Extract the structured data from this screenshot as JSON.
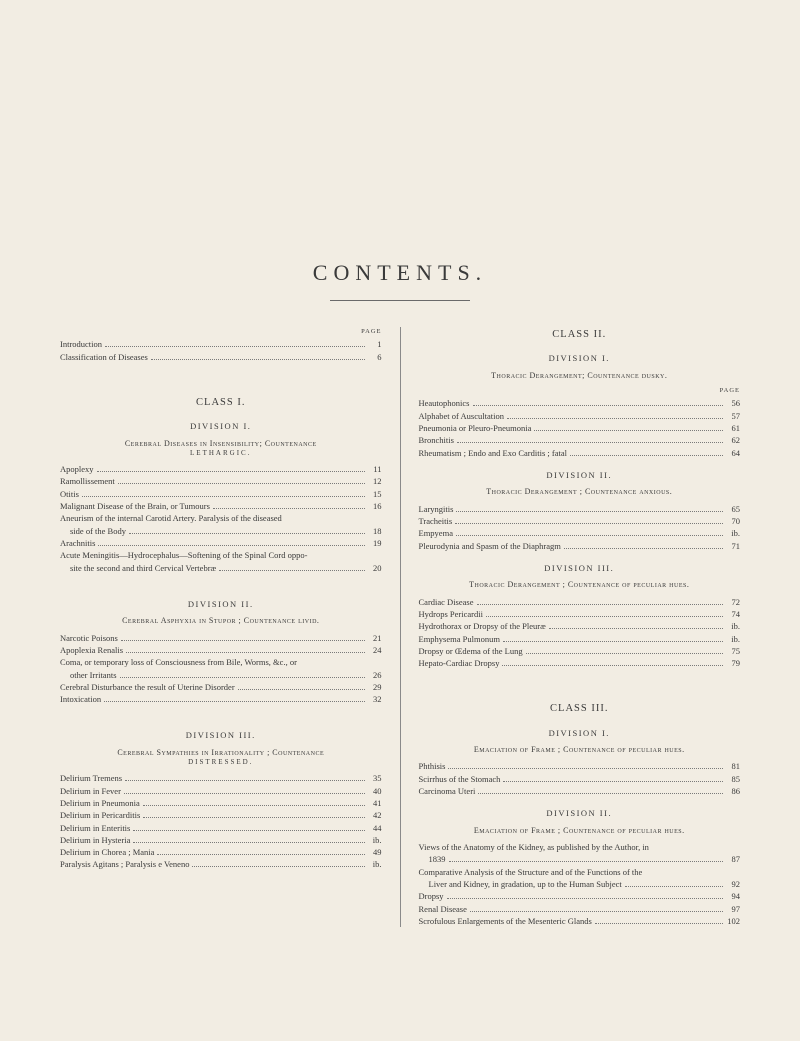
{
  "title": "CONTENTS.",
  "page_label": "PAGE",
  "colors": {
    "background": "#f2ede3",
    "text": "#3a3a3a",
    "rule": "#6a6a6a"
  },
  "left": {
    "top_entries": [
      {
        "label": "Introduction",
        "page": "1"
      },
      {
        "label": "Classification of Diseases",
        "page": "6"
      }
    ],
    "class1": {
      "heading": "CLASS I.",
      "div1": {
        "heading": "DIVISION I.",
        "section": "Cerebral Diseases in Insensibility; Countenance",
        "section_sub": "LETHARGIC.",
        "entries": [
          {
            "label": "Apoplexy",
            "page": "11"
          },
          {
            "label": "Ramollissement",
            "page": "12"
          },
          {
            "label": "Otitis",
            "page": "15"
          },
          {
            "label": "Malignant Disease of the Brain, or Tumours",
            "page": "16"
          },
          {
            "label": "Aneurism of the internal Carotid Artery. Paralysis of the diseased",
            "page": ""
          },
          {
            "label": "side of the Body",
            "page": "18",
            "indent": true
          },
          {
            "label": "Arachnitis",
            "page": "19"
          },
          {
            "label": "Acute Meningitis—Hydrocephalus—Softening of the Spinal Cord oppo-",
            "page": ""
          },
          {
            "label": "site the second and third Cervical Vertebræ",
            "page": "20",
            "indent": true
          }
        ]
      },
      "div2": {
        "heading": "DIVISION II.",
        "section": "Cerebral Asphyxia in Stupor ; Countenance livid.",
        "entries": [
          {
            "label": "Narcotic Poisons",
            "page": "21"
          },
          {
            "label": "Apoplexia Renalis",
            "page": "24"
          },
          {
            "label": "Coma, or temporary loss of Consciousness from Bile, Worms, &c., or",
            "page": ""
          },
          {
            "label": "other Irritants",
            "page": "26",
            "indent": true
          },
          {
            "label": "Cerebral Disturbance the result of Uterine Disorder",
            "page": "29"
          },
          {
            "label": "Intoxication",
            "page": "32"
          }
        ]
      },
      "div3": {
        "heading": "DIVISION III.",
        "section": "Cerebral Sympathies in Irrationality ; Countenance",
        "section_sub": "DISTRESSED.",
        "entries": [
          {
            "label": "Delirium Tremens",
            "page": "35"
          },
          {
            "label": "Delirium in Fever",
            "page": "40"
          },
          {
            "label": "Delirium in Pneumonia",
            "page": "41"
          },
          {
            "label": "Delirium in Pericarditis",
            "page": "42"
          },
          {
            "label": "Delirium in Enteritis",
            "page": "44"
          },
          {
            "label": "Delirium in Hysteria",
            "page": "ib."
          },
          {
            "label": "Delirium in Chorea ; Mania",
            "page": "49"
          },
          {
            "label": "Paralysis Agitans ; Paralysis e Veneno",
            "page": "ib."
          }
        ]
      }
    }
  },
  "right": {
    "class2": {
      "heading": "CLASS II.",
      "div1": {
        "heading": "DIVISION I.",
        "section": "Thoracic Derangement; Countenance dusky.",
        "entries": [
          {
            "label": "Heautophonics",
            "page": "56"
          },
          {
            "label": "Alphabet of Auscultation",
            "page": "57"
          },
          {
            "label": "Pneumonia or Pleuro-Pneumonia",
            "page": "61"
          },
          {
            "label": "Bronchitis",
            "page": "62"
          },
          {
            "label": "Rheumatism ; Endo and Exo Carditis ; fatal",
            "page": "64"
          }
        ]
      },
      "div2": {
        "heading": "DIVISION II.",
        "section": "Thoracic Derangement ; Countenance anxious.",
        "entries": [
          {
            "label": "Laryngitis",
            "page": "65"
          },
          {
            "label": "Tracheitis",
            "page": "70"
          },
          {
            "label": "Empyema",
            "page": "ib."
          },
          {
            "label": "Pleurodynia and Spasm of the Diaphragm",
            "page": "71"
          }
        ]
      },
      "div3": {
        "heading": "DIVISION III.",
        "section": "Thoracic Derangement ; Countenance of peculiar hues.",
        "entries": [
          {
            "label": "Cardiac Disease",
            "page": "72"
          },
          {
            "label": "Hydrops Pericardii",
            "page": "74"
          },
          {
            "label": "Hydrothorax or Dropsy of the Pleuræ",
            "page": "ib."
          },
          {
            "label": "Emphysema Pulmonum",
            "page": "ib."
          },
          {
            "label": "Dropsy or Œdema of the Lung",
            "page": "75"
          },
          {
            "label": "Hepato-Cardiac Dropsy",
            "page": "79"
          }
        ]
      }
    },
    "class3": {
      "heading": "CLASS III.",
      "div1": {
        "heading": "DIVISION I.",
        "section": "Emaciation of Frame ; Countenance of peculiar hues.",
        "entries": [
          {
            "label": "Phthisis",
            "page": "81"
          },
          {
            "label": "Scirrhus of the Stomach",
            "page": "85"
          },
          {
            "label": "Carcinoma Uteri",
            "page": "86"
          }
        ]
      },
      "div2": {
        "heading": "DIVISION II.",
        "section": "Emaciation of Frame ; Countenance of peculiar hues.",
        "entries": [
          {
            "label": "Views of the Anatomy of the Kidney, as published by the Author, in",
            "page": ""
          },
          {
            "label": "1839",
            "page": "87",
            "indent": true
          },
          {
            "label": "Comparative Analysis of the Structure and of the Functions of the",
            "page": ""
          },
          {
            "label": "Liver and Kidney, in gradation, up to the Human Subject",
            "page": "92",
            "indent": true
          },
          {
            "label": "Dropsy",
            "page": "94"
          },
          {
            "label": "Renal Disease",
            "page": "97"
          },
          {
            "label": "Scrofulous Enlargements of the Mesenteric Glands",
            "page": "102"
          }
        ]
      }
    }
  }
}
